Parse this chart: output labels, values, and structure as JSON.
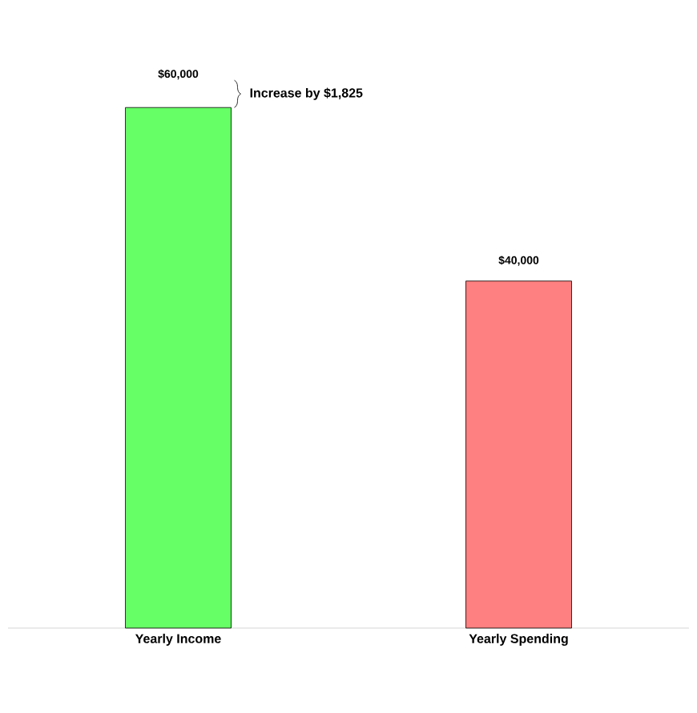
{
  "chart_data": {
    "type": "bar",
    "categories": [
      "Yearly Income",
      "Yearly Spending"
    ],
    "values": [
      60000,
      40000
    ],
    "colors": [
      "#66ff66",
      "#ff8080"
    ],
    "value_labels": [
      "$60,000",
      "$40,000"
    ],
    "annotations": [
      "Increase by $1,825"
    ]
  }
}
